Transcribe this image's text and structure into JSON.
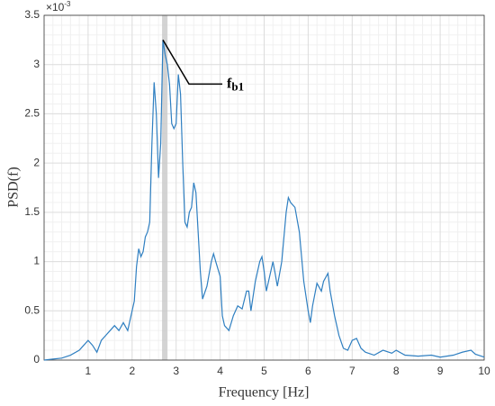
{
  "chart_data": {
    "type": "line",
    "y_label": "PSD(f)",
    "x_label": "Frequency [Hz]",
    "y_scale_base": "×10",
    "y_scale_exponent": "-3",
    "x": [
      0,
      0.2,
      0.4,
      0.6,
      0.8,
      0.9,
      1.0,
      1.1,
      1.2,
      1.3,
      1.4,
      1.5,
      1.6,
      1.7,
      1.8,
      1.9,
      2.0,
      2.05,
      2.1,
      2.15,
      2.2,
      2.25,
      2.3,
      2.35,
      2.4,
      2.45,
      2.5,
      2.55,
      2.6,
      2.65,
      2.7,
      2.75,
      2.8,
      2.85,
      2.9,
      2.95,
      3.0,
      3.05,
      3.1,
      3.15,
      3.2,
      3.25,
      3.3,
      3.35,
      3.4,
      3.45,
      3.5,
      3.55,
      3.6,
      3.7,
      3.8,
      3.85,
      3.9,
      4.0,
      4.05,
      4.1,
      4.2,
      4.3,
      4.4,
      4.5,
      4.6,
      4.65,
      4.7,
      4.8,
      4.9,
      4.95,
      5.0,
      5.05,
      5.1,
      5.2,
      5.25,
      5.3,
      5.4,
      5.5,
      5.55,
      5.6,
      5.7,
      5.8,
      5.9,
      6.0,
      6.05,
      6.1,
      6.2,
      6.3,
      6.35,
      6.45,
      6.5,
      6.6,
      6.7,
      6.8,
      6.9,
      7.0,
      7.1,
      7.2,
      7.3,
      7.5,
      7.7,
      7.9,
      8.0,
      8.2,
      8.5,
      8.8,
      9.0,
      9.3,
      9.5,
      9.7,
      9.8,
      10
    ],
    "series": [
      {
        "color": "#2f7fc1",
        "values": [
          0,
          0.01,
          0.02,
          0.05,
          0.1,
          0.15,
          0.2,
          0.15,
          0.08,
          0.2,
          0.25,
          0.3,
          0.35,
          0.3,
          0.38,
          0.3,
          0.5,
          0.6,
          0.95,
          1.13,
          1.05,
          1.1,
          1.25,
          1.3,
          1.4,
          2.2,
          2.82,
          2.5,
          1.85,
          2.2,
          3.25,
          3.1,
          3.0,
          2.8,
          2.4,
          2.35,
          2.4,
          2.9,
          2.7,
          2.0,
          1.4,
          1.35,
          1.5,
          1.55,
          1.8,
          1.7,
          1.3,
          0.9,
          0.62,
          0.75,
          1.0,
          1.08,
          1.0,
          0.85,
          0.45,
          0.35,
          0.3,
          0.45,
          0.55,
          0.52,
          0.7,
          0.7,
          0.5,
          0.8,
          1.0,
          1.05,
          0.9,
          0.7,
          0.8,
          1.0,
          0.88,
          0.75,
          1.0,
          1.5,
          1.65,
          1.6,
          1.55,
          1.3,
          0.8,
          0.5,
          0.38,
          0.55,
          0.78,
          0.7,
          0.8,
          0.88,
          0.7,
          0.45,
          0.25,
          0.12,
          0.1,
          0.2,
          0.22,
          0.12,
          0.08,
          0.05,
          0.1,
          0.07,
          0.1,
          0.05,
          0.04,
          0.05,
          0.03,
          0.05,
          0.08,
          0.1,
          0.06,
          0.03
        ]
      }
    ],
    "xlim": [
      0,
      10
    ],
    "ylim": [
      0,
      3.5
    ],
    "xticks": [
      1,
      2,
      3,
      4,
      5,
      6,
      7,
      8,
      9,
      10
    ],
    "yticks": [
      0,
      0.5,
      1,
      1.5,
      2,
      2.5,
      3,
      3.5
    ],
    "xminorticks": [
      0.2,
      0.4,
      0.6,
      0.8,
      1.2,
      1.4,
      1.6,
      1.8,
      2.2,
      2.4,
      2.6,
      2.8,
      3.2,
      3.4,
      3.6,
      3.8,
      4.2,
      4.4,
      4.6,
      4.8,
      5.2,
      5.4,
      5.6,
      5.8,
      6.2,
      6.4,
      6.6,
      6.8,
      7.2,
      7.4,
      7.6,
      7.8,
      8.2,
      8.4,
      8.6,
      8.8,
      9.2,
      9.4,
      9.6,
      9.8
    ],
    "yminorticks": [
      0.1,
      0.2,
      0.3,
      0.4,
      0.6,
      0.7,
      0.8,
      0.9,
      1.1,
      1.2,
      1.3,
      1.4,
      1.6,
      1.7,
      1.8,
      1.9,
      2.1,
      2.2,
      2.3,
      2.4,
      2.6,
      2.7,
      2.8,
      2.9,
      3.1,
      3.2,
      3.3,
      3.4
    ],
    "grid": true,
    "highlight_band": [
      2.68,
      2.8
    ],
    "annotation": {
      "text": "f",
      "subscript": "b1",
      "x": 2.7,
      "y": 3.25
    }
  }
}
